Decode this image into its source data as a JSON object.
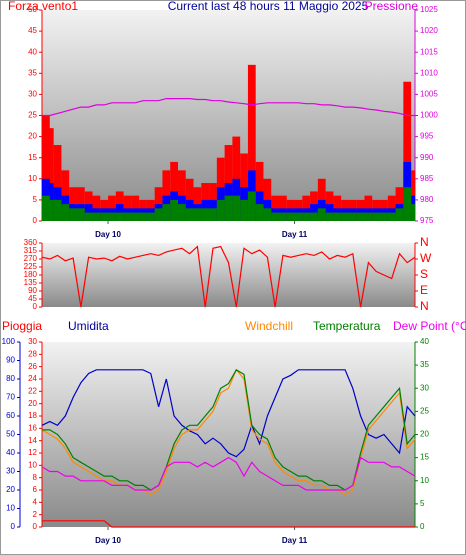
{
  "chart_data": [
    {
      "type": "bar",
      "title": "Current last 48 hours 11 Maggio 2025",
      "y_label": "Forza vento1",
      "x": [
        0,
        1,
        2,
        3,
        4,
        5,
        6,
        7,
        8,
        9,
        10,
        11,
        12,
        13,
        14,
        15,
        16,
        17,
        18,
        19,
        20,
        21,
        22,
        23,
        24,
        25,
        26,
        27,
        28,
        29,
        30,
        31,
        32,
        33,
        34,
        35,
        36,
        37,
        38,
        39,
        40,
        41,
        42,
        43,
        44,
        45,
        46,
        47,
        48
      ],
      "xlim": [
        0,
        48
      ],
      "xticks": [
        {
          "value": 8.5,
          "label": "Day 10"
        },
        {
          "value": 32.5,
          "label": "Day 11"
        }
      ],
      "ylim": [
        0,
        50
      ],
      "yticks": [
        0,
        5,
        10,
        15,
        20,
        25,
        30,
        35,
        40,
        45,
        50
      ],
      "y2lim": [
        975,
        1025
      ],
      "y2ticks": [
        975,
        980,
        985,
        990,
        995,
        1000,
        1005,
        1010,
        1015,
        1020,
        1025
      ],
      "series": [
        {
          "color": "#ff0000",
          "values": [
            25,
            22,
            18,
            12,
            8,
            8,
            7,
            6,
            5,
            6,
            7,
            6,
            6,
            5,
            5,
            8,
            12,
            14,
            12,
            10,
            8,
            9,
            9,
            15,
            18,
            20,
            16,
            37,
            14,
            10,
            6,
            6,
            5,
            5,
            6,
            7,
            10,
            7,
            6,
            5,
            5,
            5,
            6,
            5,
            5,
            6,
            8,
            33,
            12
          ]
        },
        {
          "color": "#0000ff",
          "values": [
            10,
            9,
            8,
            6,
            4,
            4,
            4,
            3,
            3,
            3,
            4,
            3,
            3,
            3,
            3,
            4,
            6,
            7,
            6,
            5,
            4,
            5,
            5,
            8,
            9,
            10,
            8,
            12,
            7,
            5,
            3,
            3,
            3,
            3,
            3,
            4,
            5,
            4,
            3,
            3,
            3,
            3,
            3,
            3,
            3,
            3,
            4,
            14,
            6
          ]
        },
        {
          "color": "#008000",
          "values": [
            6,
            5,
            5,
            4,
            3,
            3,
            2,
            2,
            2,
            2,
            2,
            2,
            2,
            2,
            2,
            3,
            4,
            5,
            4,
            3,
            3,
            3,
            3,
            5,
            6,
            6,
            5,
            7,
            4,
            3,
            2,
            2,
            2,
            2,
            2,
            2,
            3,
            2,
            2,
            2,
            2,
            2,
            2,
            2,
            2,
            2,
            3,
            8,
            4
          ]
        },
        {
          "name": "Pressione",
          "type": "line",
          "axis": "y2",
          "color": "#dd00dd",
          "values": [
            1000,
            1000,
            1000.5,
            1001,
            1001.5,
            1002,
            1002,
            1002.5,
            1002.5,
            1003,
            1003,
            1003,
            1003,
            1003.5,
            1003.5,
            1003.5,
            1004,
            1004,
            1004,
            1004,
            1003.8,
            1003.8,
            1003.5,
            1003.5,
            1003.2,
            1003,
            1002.8,
            1002.5,
            1002.8,
            1003,
            1003,
            1003,
            1003,
            1003,
            1002.8,
            1002.8,
            1002.5,
            1002.5,
            1002.3,
            1002,
            1002,
            1001.8,
            1001.5,
            1001.3,
            1001,
            1000.8,
            1000.5,
            1000,
            1000
          ]
        }
      ]
    },
    {
      "type": "line",
      "x": [
        0,
        1,
        2,
        3,
        4,
        5,
        6,
        7,
        8,
        9,
        10,
        11,
        12,
        13,
        14,
        15,
        16,
        17,
        18,
        19,
        20,
        21,
        22,
        23,
        24,
        25,
        26,
        27,
        28,
        29,
        30,
        31,
        32,
        33,
        34,
        35,
        36,
        37,
        38,
        39,
        40,
        41,
        42,
        43,
        44,
        45,
        46,
        47,
        48
      ],
      "xlim": [
        0,
        48
      ],
      "ylim": [
        0,
        360
      ],
      "yticks": [
        0,
        45,
        90,
        135,
        180,
        225,
        270,
        315,
        360
      ],
      "y2lim": [
        0,
        360
      ],
      "y2ticks": [
        {
          "value": 360,
          "label": "N"
        },
        {
          "value": 270,
          "label": "W"
        },
        {
          "value": 180,
          "label": "S"
        },
        {
          "value": 90,
          "label": "E"
        },
        {
          "value": 0,
          "label": "N"
        }
      ],
      "series": [
        {
          "color": "#ff0000",
          "values": [
            280,
            270,
            290,
            260,
            275,
            0,
            280,
            270,
            275,
            260,
            285,
            270,
            280,
            290,
            300,
            290,
            310,
            320,
            330,
            300,
            340,
            0,
            330,
            340,
            250,
            0,
            330,
            300,
            320,
            280,
            0,
            290,
            280,
            290,
            300,
            290,
            310,
            270,
            290,
            280,
            300,
            0,
            250,
            200,
            180,
            160,
            300,
            250,
            280
          ]
        }
      ]
    },
    {
      "type": "line",
      "x": [
        0,
        1,
        2,
        3,
        4,
        5,
        6,
        7,
        8,
        9,
        10,
        11,
        12,
        13,
        14,
        15,
        16,
        17,
        18,
        19,
        20,
        21,
        22,
        23,
        24,
        25,
        26,
        27,
        28,
        29,
        30,
        31,
        32,
        33,
        34,
        35,
        36,
        37,
        38,
        39,
        40,
        41,
        42,
        43,
        44,
        45,
        46,
        47,
        48
      ],
      "xlim": [
        0,
        48
      ],
      "xticks": [
        {
          "value": 8.5,
          "label": "Day 10"
        },
        {
          "value": 32.5,
          "label": "Day 11"
        }
      ],
      "ylim": [
        0,
        30
      ],
      "yticks": [
        0,
        2,
        4,
        6,
        8,
        10,
        12,
        14,
        16,
        18,
        20,
        22,
        24,
        26,
        28,
        30
      ],
      "y2lim": [
        0,
        40
      ],
      "y2ticks": [
        0,
        5,
        10,
        15,
        20,
        25,
        30,
        35,
        40
      ],
      "y3lim": [
        0,
        100
      ],
      "y3ticks": [
        0,
        10,
        20,
        30,
        40,
        50,
        60,
        70,
        80,
        90,
        100
      ],
      "series": [
        {
          "name": "Pioggia",
          "axis": "y",
          "color": "#ff0000",
          "values": [
            1,
            1,
            1,
            1,
            1,
            1,
            1,
            1,
            1,
            0,
            0,
            0,
            0,
            0,
            0,
            0,
            0,
            0,
            0,
            0,
            0,
            0,
            0,
            0,
            0,
            0,
            0,
            0,
            0,
            0,
            0,
            0,
            0,
            0,
            0,
            0,
            0,
            0,
            0,
            0,
            0,
            0,
            0,
            0,
            0,
            0,
            0,
            0,
            0
          ]
        },
        {
          "name": "Umidita",
          "axis": "y3",
          "color": "#0000cc",
          "values": [
            55,
            57,
            55,
            60,
            70,
            78,
            83,
            85,
            85,
            85,
            85,
            85,
            85,
            85,
            83,
            65,
            80,
            60,
            55,
            52,
            50,
            45,
            48,
            45,
            40,
            38,
            42,
            55,
            45,
            60,
            70,
            80,
            82,
            85,
            85,
            85,
            85,
            85,
            85,
            85,
            75,
            60,
            50,
            48,
            50,
            45,
            40,
            65,
            60
          ]
        },
        {
          "name": "Windchill",
          "axis": "y2",
          "color": "#ff8800",
          "values": [
            21,
            20,
            19,
            17,
            14,
            13,
            12,
            11,
            10,
            10,
            9,
            9,
            8,
            8,
            7,
            8,
            12,
            17,
            20,
            21,
            21,
            23,
            25,
            29,
            30,
            34,
            32,
            21,
            19,
            18,
            14,
            12,
            11,
            10,
            10,
            9,
            9,
            8,
            8,
            7,
            8,
            15,
            21,
            23,
            25,
            27,
            29,
            17,
            19
          ]
        },
        {
          "name": "Temperatura",
          "axis": "y2",
          "color": "#008000",
          "values": [
            21,
            21,
            20,
            18,
            15,
            14,
            13,
            12,
            11,
            11,
            10,
            10,
            9,
            9,
            8,
            9,
            13,
            18,
            21,
            22,
            22,
            24,
            26,
            30,
            31,
            34,
            33,
            22,
            20,
            19,
            15,
            13,
            12,
            11,
            11,
            10,
            10,
            9,
            9,
            8,
            9,
            16,
            22,
            24,
            26,
            28,
            30,
            18,
            20
          ]
        },
        {
          "name": "Dew Point (°C)",
          "axis": "y2",
          "color": "#ee00ee",
          "values": [
            13,
            12,
            12,
            11,
            11,
            10,
            10,
            10,
            10,
            9,
            9,
            9,
            8,
            8,
            8,
            9,
            13,
            14,
            14,
            14,
            13,
            14,
            13,
            14,
            15,
            14,
            11,
            14,
            12,
            11,
            10,
            9,
            9,
            9,
            8,
            8,
            8,
            8,
            8,
            8,
            9,
            15,
            14,
            14,
            14,
            13,
            13,
            12,
            11
          ]
        }
      ]
    }
  ]
}
